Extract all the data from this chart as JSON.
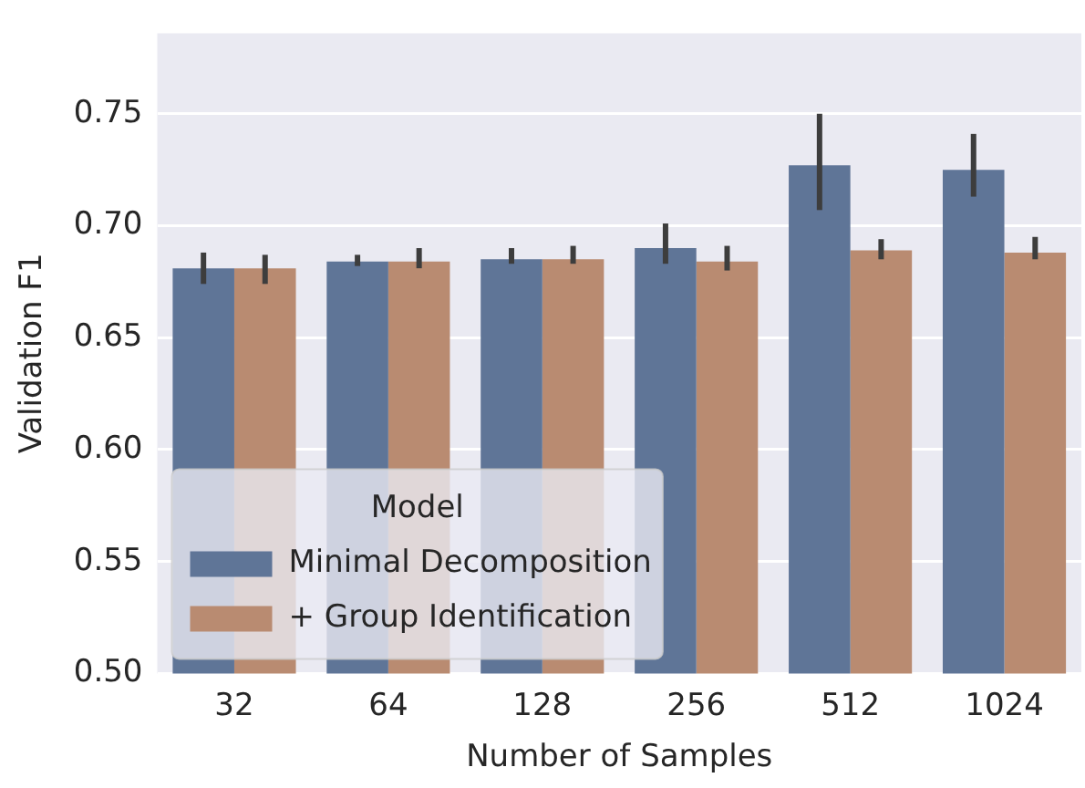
{
  "chart_data": {
    "type": "bar",
    "xlabel": "Number of Samples",
    "ylabel": "Validation F1",
    "legend_title": "Model",
    "categories": [
      "32",
      "64",
      "128",
      "256",
      "512",
      "1024"
    ],
    "series": [
      {
        "name": "Minimal Decomposition",
        "color": "#5f7597",
        "values": [
          0.681,
          0.684,
          0.685,
          0.69,
          0.727,
          0.725
        ],
        "errors": [
          [
            0.674,
            0.688
          ],
          [
            0.682,
            0.687
          ],
          [
            0.683,
            0.69
          ],
          [
            0.683,
            0.701
          ],
          [
            0.707,
            0.75
          ],
          [
            0.713,
            0.741
          ]
        ]
      },
      {
        "name": "+ Group Identification",
        "color": "#b98b71",
        "values": [
          0.681,
          0.684,
          0.685,
          0.684,
          0.689,
          0.688
        ],
        "errors": [
          [
            0.674,
            0.687
          ],
          [
            0.681,
            0.69
          ],
          [
            0.683,
            0.691
          ],
          [
            0.68,
            0.691
          ],
          [
            0.685,
            0.694
          ],
          [
            0.685,
            0.695
          ]
        ]
      }
    ],
    "ylim": [
      0.5,
      0.786
    ],
    "yticks": [
      {
        "value": 0.5,
        "label": "0.50"
      },
      0.55,
      {
        "value": 0.6,
        "label": "0.60"
      },
      0.65,
      {
        "value": 0.7,
        "label": "0.70"
      },
      0.75
    ],
    "grid": "y",
    "legend": "bottom left"
  }
}
